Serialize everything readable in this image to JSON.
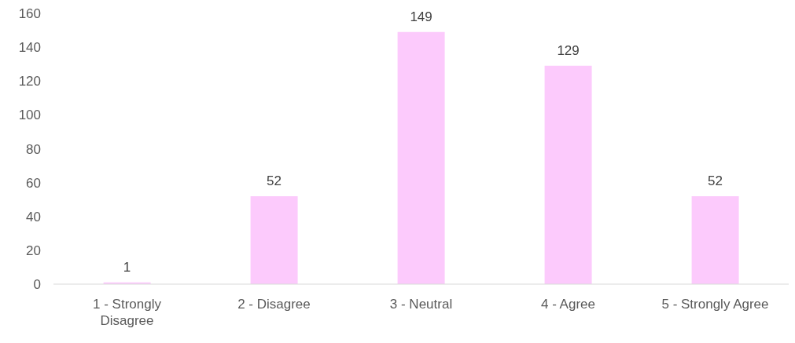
{
  "chart_data": {
    "type": "bar",
    "categories": [
      "1 - Strongly Disagree",
      "2 - Disagree",
      "3 - Neutral",
      "4 - Agree",
      "5 - Strongly Agree"
    ],
    "values": [
      1,
      52,
      149,
      129,
      52
    ],
    "color": "#fccafc",
    "ylim": [
      0,
      160
    ],
    "yticks": [
      0,
      20,
      40,
      60,
      80,
      100,
      120,
      140,
      160
    ],
    "grid": false,
    "data_labels": true
  }
}
